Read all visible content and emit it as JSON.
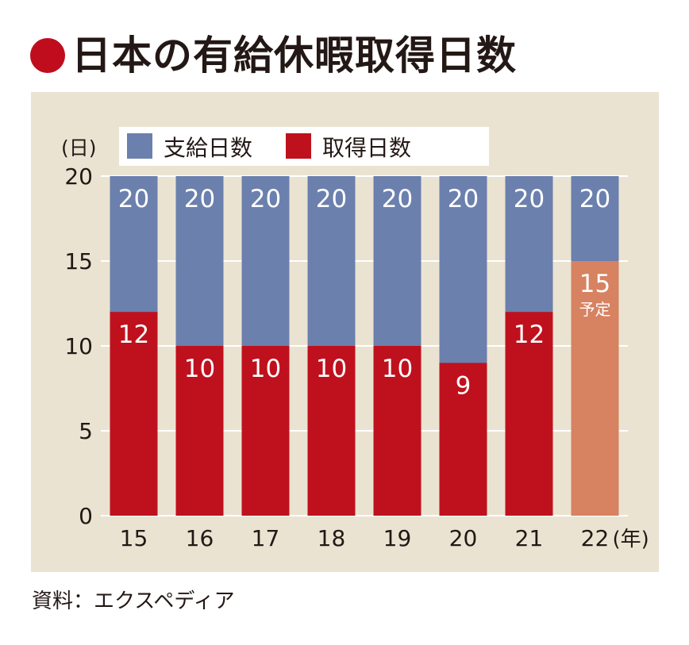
{
  "title": "日本の有給休暇取得日数",
  "source": "資料：エクスペディア",
  "colors": {
    "title_dot": "#c00d1e",
    "panel_bg": "#ebe3d2",
    "granted": "#6b80ad",
    "taken": "#bf111d",
    "planned": "#d78261",
    "legend_bg": "#ffffff",
    "text_dark": "#231815",
    "text_light": "#ffffff",
    "grid": "#ffffff"
  },
  "chart_data": {
    "type": "bar",
    "stacked": "overlay",
    "unit": "(日)",
    "x_unit": "(年)",
    "categories": [
      "15",
      "16",
      "17",
      "18",
      "19",
      "20",
      "21",
      "22"
    ],
    "ylim": [
      0,
      20
    ],
    "y_ticks": [
      "0",
      "5",
      "10",
      "15",
      "20"
    ],
    "grid": true,
    "legend_position": "top",
    "series": [
      {
        "name": "支給日数",
        "color_key": "granted",
        "values": [
          20,
          20,
          20,
          20,
          20,
          20,
          20,
          20
        ],
        "labels": [
          "20",
          "20",
          "20",
          "20",
          "20",
          "20",
          "20",
          "20"
        ]
      },
      {
        "name": "取得日数",
        "color_key": "taken",
        "values": [
          12,
          10,
          10,
          10,
          10,
          9,
          12,
          15
        ],
        "labels": [
          "12",
          "10",
          "10",
          "10",
          "10",
          "9",
          "12",
          "15"
        ]
      }
    ],
    "planned_index": 7,
    "planned_note": "予定"
  }
}
